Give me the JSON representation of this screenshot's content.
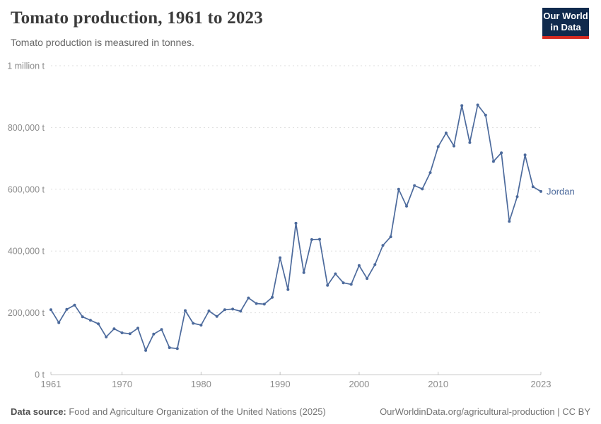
{
  "header": {
    "title": "Tomato production, 1961 to 2023",
    "subtitle": "Tomato production is measured in tonnes.",
    "logo": {
      "line1": "Our World",
      "line2": "in Data"
    }
  },
  "chart_data": {
    "type": "line",
    "title": "Tomato production, 1961 to 2023",
    "xlabel": "",
    "ylabel": "tonnes",
    "xlim": [
      1961,
      2023
    ],
    "ylim": [
      0,
      1000000
    ],
    "grid": "horizontal-dashed",
    "legend_position": "end-of-line-label",
    "x_ticks": [
      1961,
      1970,
      1980,
      1990,
      2000,
      2010,
      2023
    ],
    "y_ticks": [
      {
        "value": 0,
        "label": "0 t"
      },
      {
        "value": 200000,
        "label": "200,000 t"
      },
      {
        "value": 400000,
        "label": "400,000 t"
      },
      {
        "value": 600000,
        "label": "600,000 t"
      },
      {
        "value": 800000,
        "label": "800,000 t"
      },
      {
        "value": 1000000,
        "label": "1 million t"
      }
    ],
    "series": [
      {
        "name": "Jordan",
        "color": "#4C6A9C",
        "x": [
          1961,
          1962,
          1963,
          1964,
          1965,
          1966,
          1967,
          1968,
          1969,
          1970,
          1971,
          1972,
          1973,
          1974,
          1975,
          1976,
          1977,
          1978,
          1979,
          1980,
          1981,
          1982,
          1983,
          1984,
          1985,
          1986,
          1987,
          1988,
          1989,
          1990,
          1991,
          1992,
          1993,
          1994,
          1995,
          1996,
          1997,
          1998,
          1999,
          2000,
          2001,
          2002,
          2003,
          2004,
          2005,
          2006,
          2007,
          2008,
          2009,
          2010,
          2011,
          2012,
          2013,
          2014,
          2015,
          2016,
          2017,
          2018,
          2019,
          2020,
          2021,
          2022,
          2023
        ],
        "values": [
          210000,
          168000,
          211000,
          225000,
          187000,
          176000,
          164000,
          122000,
          148000,
          135000,
          132000,
          150000,
          78000,
          131000,
          146000,
          87000,
          84000,
          207000,
          166000,
          160000,
          206000,
          188000,
          210000,
          212000,
          205000,
          248000,
          230000,
          228000,
          250000,
          378000,
          275000,
          490000,
          330000,
          437000,
          438000,
          289000,
          326000,
          297000,
          292000,
          353000,
          311000,
          356000,
          418000,
          446000,
          600000,
          545000,
          612000,
          601000,
          654000,
          738000,
          782000,
          740000,
          871000,
          751000,
          873000,
          840000,
          690000,
          718000,
          496000,
          576000,
          711000,
          608000,
          593000
        ]
      }
    ],
    "end_label": "Jordan"
  },
  "footer": {
    "source_label": "Data source:",
    "source_text": " Food and Agriculture Organization of the United Nations (2025)",
    "credit": "OurWorldinData.org/agricultural-production | CC BY"
  },
  "colors": {
    "line": "#4C6A9C",
    "title_text": "#3c3c3c",
    "subtitle_text": "#666666",
    "tick_text": "#8b8b8b",
    "gridline": "#dedede",
    "axis": "#c4c4c4",
    "logo_bg": "#102a4d",
    "logo_red": "#d42b21",
    "footer_text": "#737373"
  }
}
